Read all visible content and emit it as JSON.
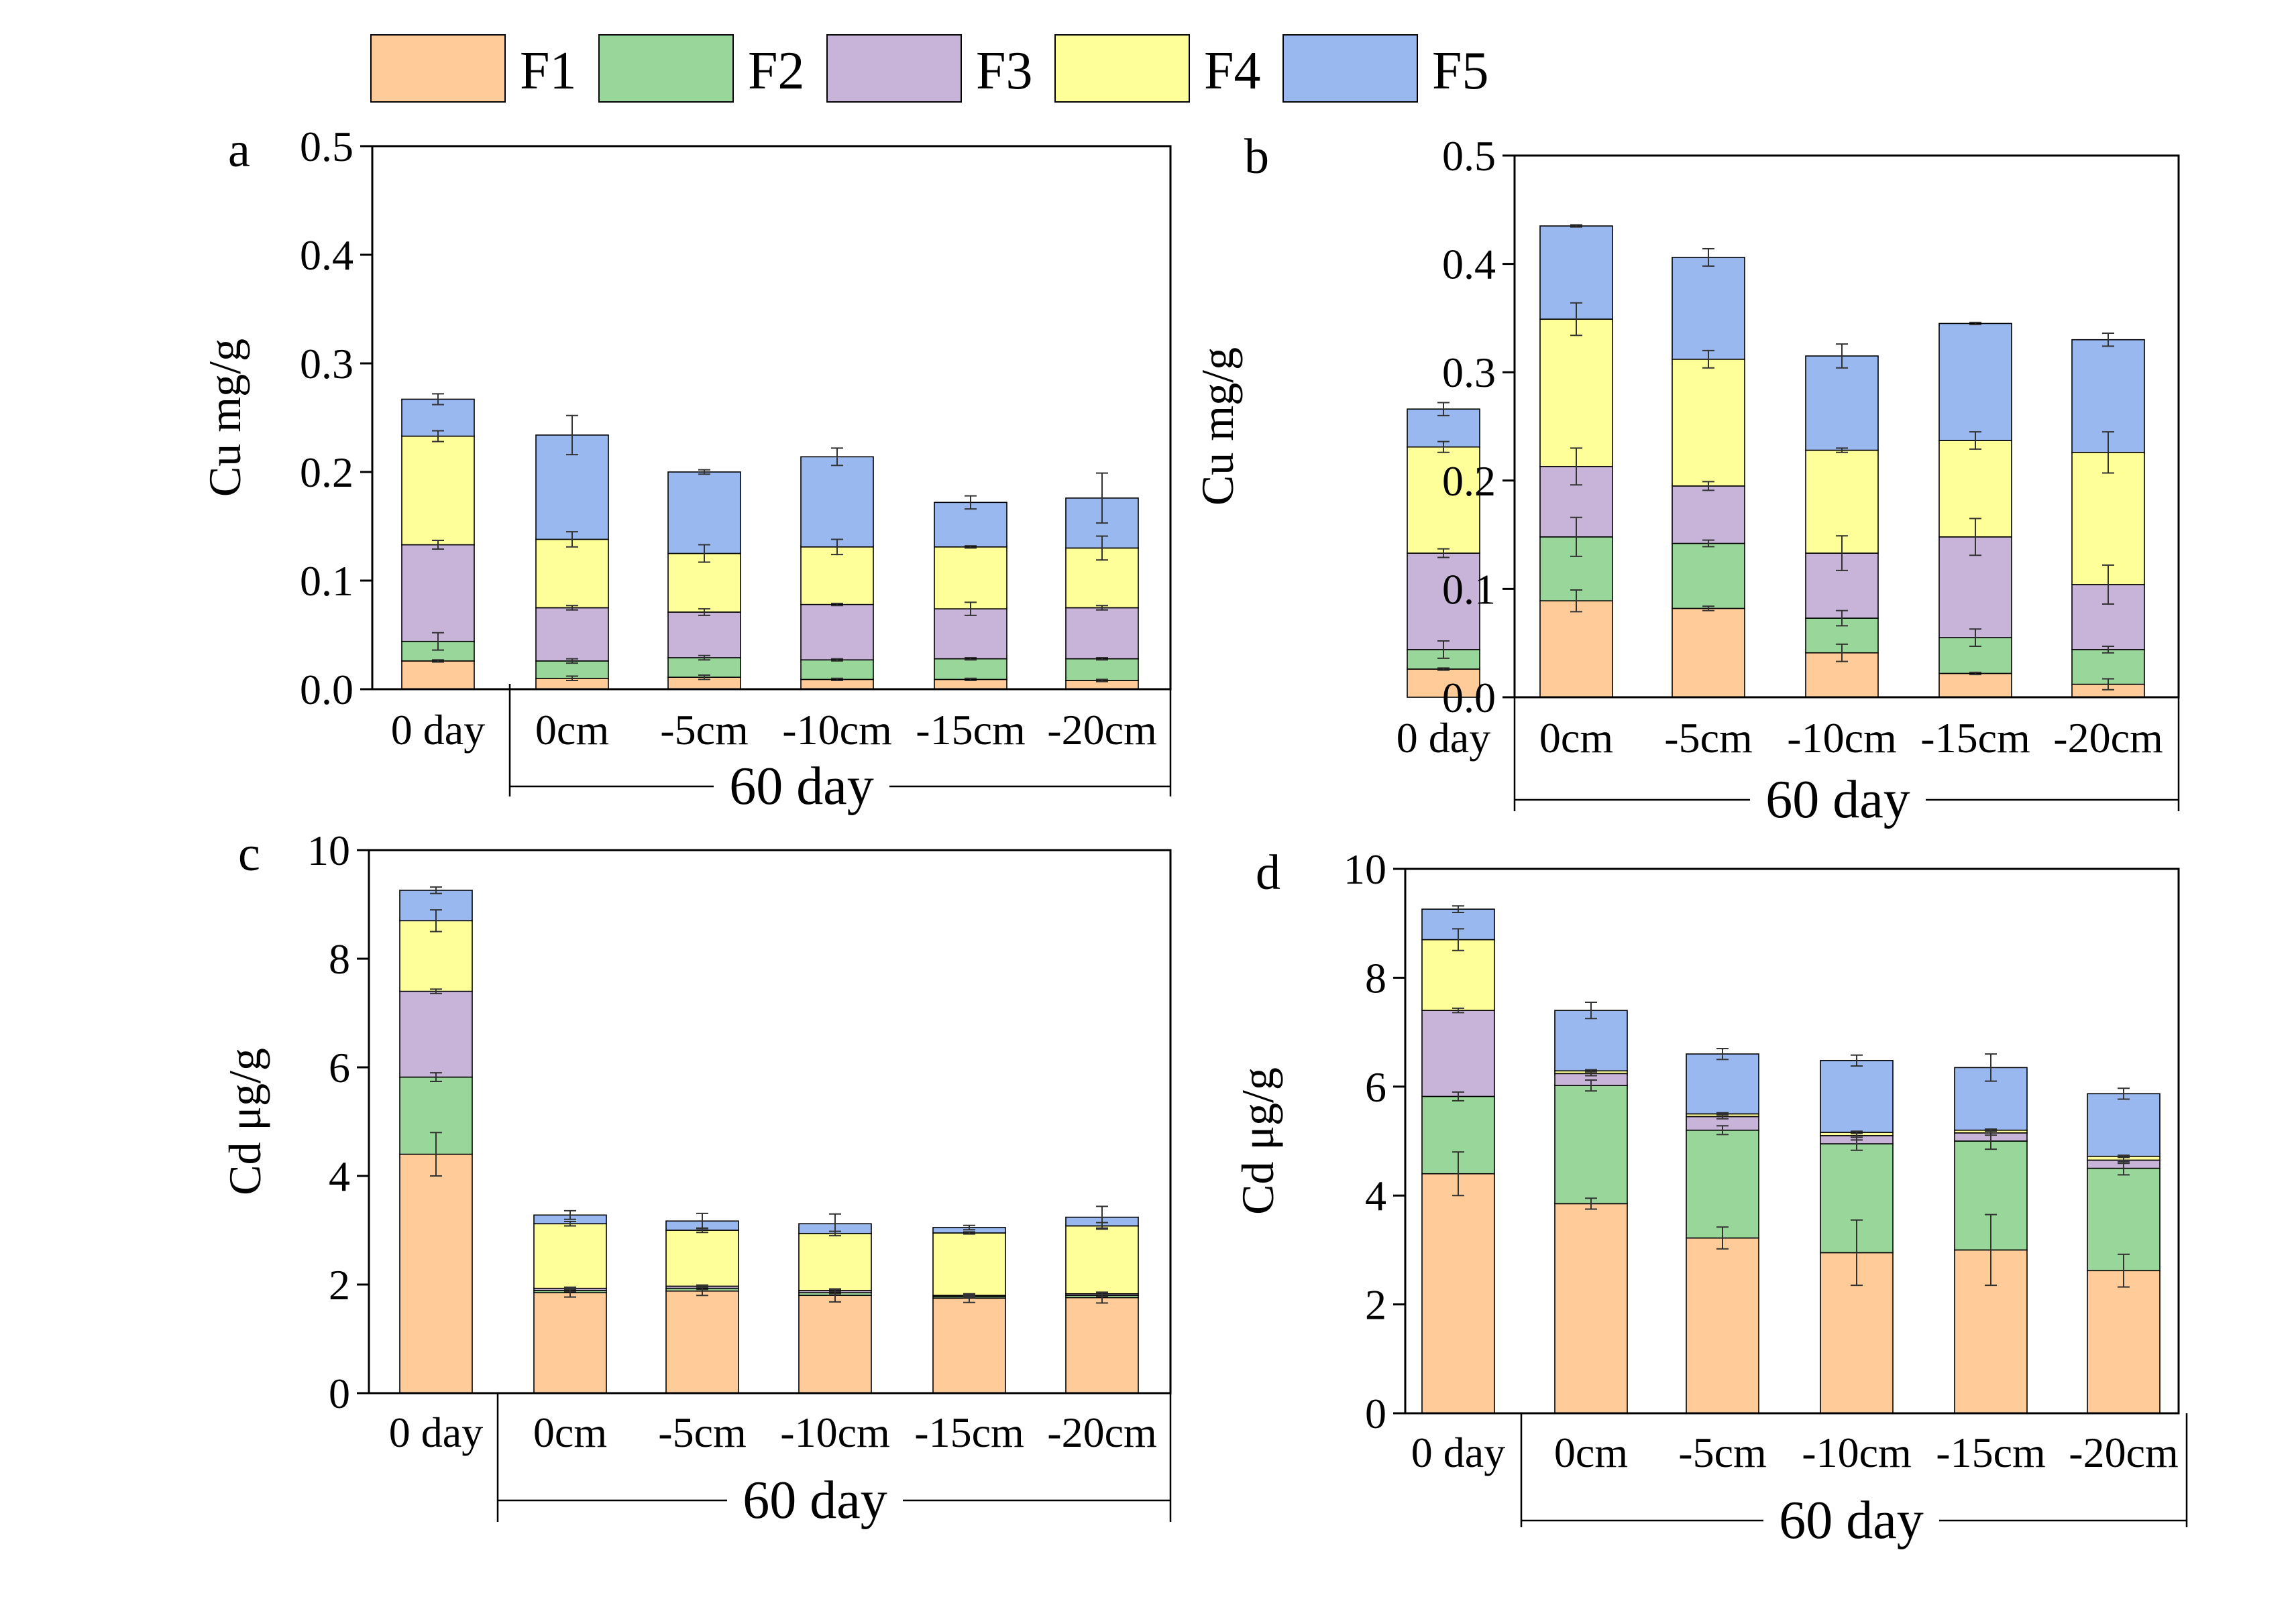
{
  "legend": {
    "items": [
      {
        "name": "F1",
        "color": "#FFCC99"
      },
      {
        "name": "F2",
        "color": "#99D699"
      },
      {
        "name": "F3",
        "color": "#C8B4D8"
      },
      {
        "name": "F4",
        "color": "#FFFF99"
      },
      {
        "name": "F5",
        "color": "#99B8F0"
      }
    ]
  },
  "chart_data": [
    {
      "panel": "a",
      "type": "bar",
      "stacked": true,
      "ylabel": "Cu mg/g",
      "ylim": [
        0,
        0.5
      ],
      "yticks": [
        "0.0",
        "0.1",
        "0.2",
        "0.3",
        "0.4",
        "0.5"
      ],
      "categories": [
        "0 day",
        "0cm",
        "-5cm",
        "-10cm",
        "-15cm",
        "-20cm"
      ],
      "group_label": "60 day",
      "series": [
        {
          "name": "F1",
          "values": [
            0.026,
            0.01,
            0.011,
            0.009,
            0.009,
            0.008
          ],
          "errors": [
            0.001,
            0.002,
            0.002,
            0.001,
            0.001,
            0.001
          ]
        },
        {
          "name": "F2",
          "values": [
            0.018,
            0.016,
            0.018,
            0.018,
            0.019,
            0.02
          ],
          "errors": [
            0.008,
            0.002,
            0.002,
            0.001,
            0.001,
            0.001
          ]
        },
        {
          "name": "F3",
          "values": [
            0.089,
            0.049,
            0.042,
            0.051,
            0.046,
            0.047
          ],
          "errors": [
            0.004,
            0.002,
            0.003,
            0.001,
            0.006,
            0.002
          ]
        },
        {
          "name": "F4",
          "values": [
            0.1,
            0.063,
            0.054,
            0.053,
            0.057,
            0.055
          ],
          "errors": [
            0.005,
            0.007,
            0.008,
            0.007,
            0.001,
            0.011
          ]
        },
        {
          "name": "F5",
          "values": [
            0.034,
            0.096,
            0.075,
            0.083,
            0.041,
            0.046
          ],
          "errors": [
            0.005,
            0.018,
            0.002,
            0.008,
            0.006,
            0.023
          ]
        }
      ]
    },
    {
      "panel": "b",
      "type": "bar",
      "stacked": true,
      "ylabel": "Cu mg/g",
      "ylim": [
        0,
        0.5
      ],
      "yticks": [
        "0.0",
        "0.1",
        "0.2",
        "0.3",
        "0.4",
        "0.5"
      ],
      "categories": [
        "0 day",
        "0cm",
        "-5cm",
        "-10cm",
        "-15cm",
        "-20cm"
      ],
      "group_label": "60 day",
      "series": [
        {
          "name": "F1",
          "values": [
            0.026,
            0.089,
            0.082,
            0.041,
            0.022,
            0.012
          ],
          "errors": [
            0.001,
            0.01,
            0.002,
            0.008,
            0.001,
            0.005
          ]
        },
        {
          "name": "F2",
          "values": [
            0.018,
            0.059,
            0.06,
            0.032,
            0.033,
            0.032
          ],
          "errors": [
            0.008,
            0.018,
            0.003,
            0.007,
            0.008,
            0.003
          ]
        },
        {
          "name": "F3",
          "values": [
            0.089,
            0.065,
            0.053,
            0.06,
            0.093,
            0.06
          ],
          "errors": [
            0.004,
            0.017,
            0.004,
            0.016,
            0.017,
            0.018
          ]
        },
        {
          "name": "F4",
          "values": [
            0.098,
            0.136,
            0.117,
            0.095,
            0.089,
            0.122
          ],
          "errors": [
            0.005,
            0.015,
            0.008,
            0.002,
            0.008,
            0.019
          ]
        },
        {
          "name": "F5",
          "values": [
            0.035,
            0.086,
            0.094,
            0.087,
            0.108,
            0.104
          ],
          "errors": [
            0.006,
            0.001,
            0.008,
            0.011,
            0.001,
            0.006
          ]
        }
      ]
    },
    {
      "panel": "c",
      "type": "bar",
      "stacked": true,
      "ylabel": "Cd μg/g",
      "ylim": [
        0,
        10
      ],
      "yticks": [
        "0",
        "2",
        "4",
        "6",
        "8",
        "10"
      ],
      "categories": [
        "0 day",
        "0cm",
        "-5cm",
        "-10cm",
        "-15cm",
        "-20cm"
      ],
      "group_label": "60 day",
      "series": [
        {
          "name": "F1",
          "values": [
            4.4,
            1.85,
            1.88,
            1.8,
            1.75,
            1.76
          ],
          "errors": [
            0.4,
            0.08,
            0.08,
            0.12,
            0.08,
            0.1
          ]
        },
        {
          "name": "F2",
          "values": [
            1.42,
            0.04,
            0.05,
            0.05,
            0.03,
            0.04
          ],
          "errors": [
            0.08,
            0.02,
            0.02,
            0.02,
            0.02,
            0.02
          ]
        },
        {
          "name": "F3",
          "values": [
            1.58,
            0.04,
            0.04,
            0.04,
            0.02,
            0.03
          ],
          "errors": [
            0.04,
            0.02,
            0.02,
            0.02,
            0.02,
            0.02
          ]
        },
        {
          "name": "F4",
          "values": [
            1.3,
            1.19,
            1.03,
            1.05,
            1.15,
            1.25
          ],
          "errors": [
            0.2,
            0.04,
            0.04,
            0.04,
            0.02,
            0.06
          ]
        },
        {
          "name": "F5",
          "values": [
            0.56,
            0.16,
            0.17,
            0.18,
            0.1,
            0.16
          ],
          "errors": [
            0.06,
            0.08,
            0.14,
            0.18,
            0.04,
            0.2
          ]
        }
      ]
    },
    {
      "panel": "d",
      "type": "bar",
      "stacked": true,
      "ylabel": "Cd μg/g",
      "ylim": [
        0,
        10
      ],
      "yticks": [
        "0",
        "2",
        "4",
        "6",
        "8",
        "10"
      ],
      "categories": [
        "0 day",
        "0cm",
        "-5cm",
        "-10cm",
        "-15cm",
        "-20cm"
      ],
      "group_label": "60 day",
      "series": [
        {
          "name": "F1",
          "values": [
            4.4,
            3.85,
            3.22,
            2.95,
            3.0,
            2.62
          ],
          "errors": [
            0.4,
            0.1,
            0.2,
            0.6,
            0.65,
            0.3
          ]
        },
        {
          "name": "F2",
          "values": [
            1.42,
            2.17,
            1.98,
            2.0,
            2.0,
            1.88
          ],
          "errors": [
            0.08,
            0.1,
            0.08,
            0.12,
            0.15,
            0.12
          ]
        },
        {
          "name": "F3",
          "values": [
            1.58,
            0.22,
            0.25,
            0.15,
            0.15,
            0.15
          ],
          "errors": [
            0.04,
            0.04,
            0.04,
            0.08,
            0.04,
            0.06
          ]
        },
        {
          "name": "F4",
          "values": [
            1.3,
            0.05,
            0.05,
            0.06,
            0.05,
            0.07
          ],
          "errors": [
            0.2,
            0.02,
            0.02,
            0.02,
            0.02,
            0.02
          ]
        },
        {
          "name": "F5",
          "values": [
            0.56,
            1.11,
            1.1,
            1.32,
            1.15,
            1.15
          ],
          "errors": [
            0.06,
            0.15,
            0.1,
            0.1,
            0.25,
            0.1
          ]
        }
      ]
    }
  ]
}
